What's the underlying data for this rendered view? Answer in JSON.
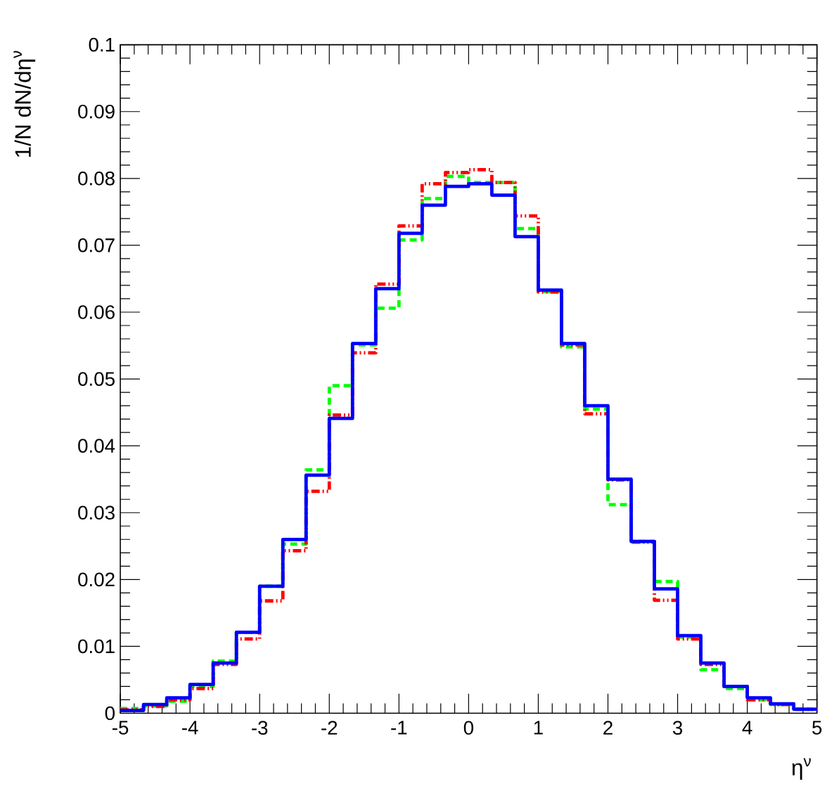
{
  "chart_data": {
    "type": "histogram",
    "xlabel": "η$^{ν}$",
    "ylabel": "1/N dN/dη$^{ν}$",
    "bins": [
      -5,
      -4.6667,
      -4.3333,
      -4,
      -3.6667,
      -3.3333,
      -3,
      -2.6667,
      -2.3333,
      -2,
      -1.6667,
      -1.3333,
      -1,
      -0.6667,
      -0.3333,
      0,
      0.3333,
      0.6667,
      1,
      1.3333,
      1.6667,
      2,
      2.3333,
      2.6667,
      3,
      3.3333,
      3.6667,
      4,
      4.3333,
      4.6667,
      5
    ],
    "series": [
      {
        "color": "#00ff00",
        "line_style": "dashed",
        "values": [
          0.0007,
          0.0011,
          0.0018,
          0.004,
          0.0078,
          0.0121,
          0.019,
          0.0253,
          0.0364,
          0.049,
          0.0551,
          0.0606,
          0.0708,
          0.077,
          0.0803,
          0.0794,
          0.0794,
          0.0725,
          0.0631,
          0.0548,
          0.0455,
          0.0312,
          0.0257,
          0.0197,
          0.0114,
          0.0065,
          0.0037,
          0.002,
          0.0013,
          0.0006
        ]
      },
      {
        "color": "#ff0000",
        "line_style": "dotted",
        "values": [
          0.0005,
          0.001,
          0.002,
          0.0037,
          0.0073,
          0.0111,
          0.0168,
          0.0243,
          0.0332,
          0.0446,
          0.0539,
          0.0642,
          0.0729,
          0.0792,
          0.0809,
          0.0813,
          0.0794,
          0.0744,
          0.063,
          0.0551,
          0.0448,
          0.0349,
          0.0256,
          0.0169,
          0.0111,
          0.0073,
          0.004,
          0.002,
          0.0013,
          0.0006
        ]
      },
      {
        "color": "#0000ff",
        "line_style": "solid",
        "values": [
          0.0004,
          0.0013,
          0.0023,
          0.0043,
          0.0075,
          0.0121,
          0.019,
          0.026,
          0.0356,
          0.0441,
          0.0553,
          0.0635,
          0.0718,
          0.076,
          0.0788,
          0.0792,
          0.0775,
          0.0713,
          0.0633,
          0.0553,
          0.046,
          0.035,
          0.0257,
          0.0186,
          0.0116,
          0.0075,
          0.004,
          0.0023,
          0.0014,
          0.0006
        ]
      }
    ],
    "xlim": [
      -5,
      5
    ],
    "ylim": [
      0,
      0.1
    ],
    "xticks": [
      -5,
      -4,
      -3,
      -2,
      -1,
      0,
      1,
      2,
      3,
      4,
      5
    ],
    "yticks": [
      0,
      0.01,
      0.02,
      0.03,
      0.04,
      0.05,
      0.06,
      0.07,
      0.08,
      0.09,
      0.1
    ],
    "grid": false
  }
}
